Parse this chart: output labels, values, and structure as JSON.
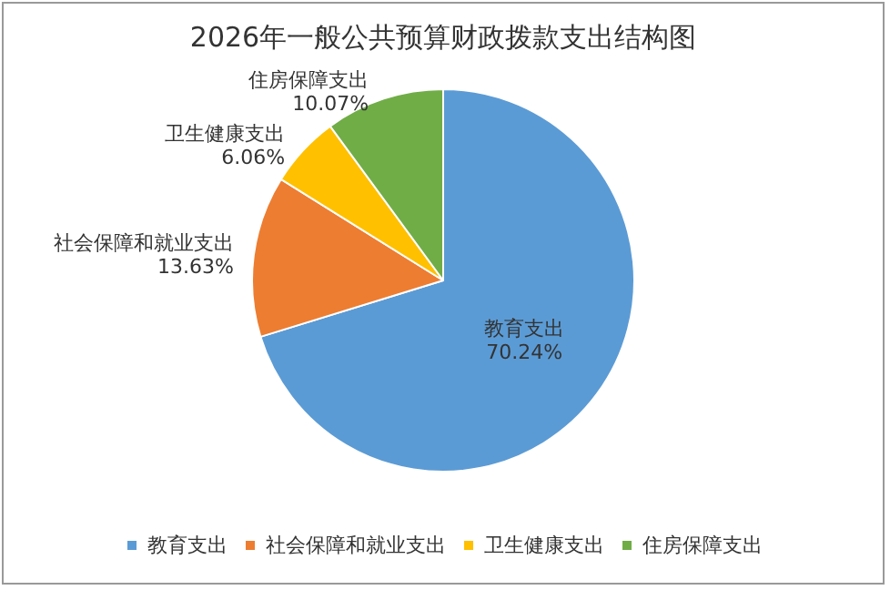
{
  "chart_data": {
    "type": "pie",
    "title": "2026年一般公共预算财政拨款支出结构图",
    "categories": [
      "教育支出",
      "社会保障和就业支出",
      "卫生健康支出",
      "住房保障支出"
    ],
    "values": [
      70.24,
      13.63,
      6.06,
      10.07
    ],
    "value_labels": [
      "70.24%",
      "13.63%",
      "6.06%",
      "10.07%"
    ],
    "colors": [
      "#5b9bd5",
      "#ed7d31",
      "#ffc000",
      "#70ad47"
    ],
    "legend": "bottom"
  }
}
